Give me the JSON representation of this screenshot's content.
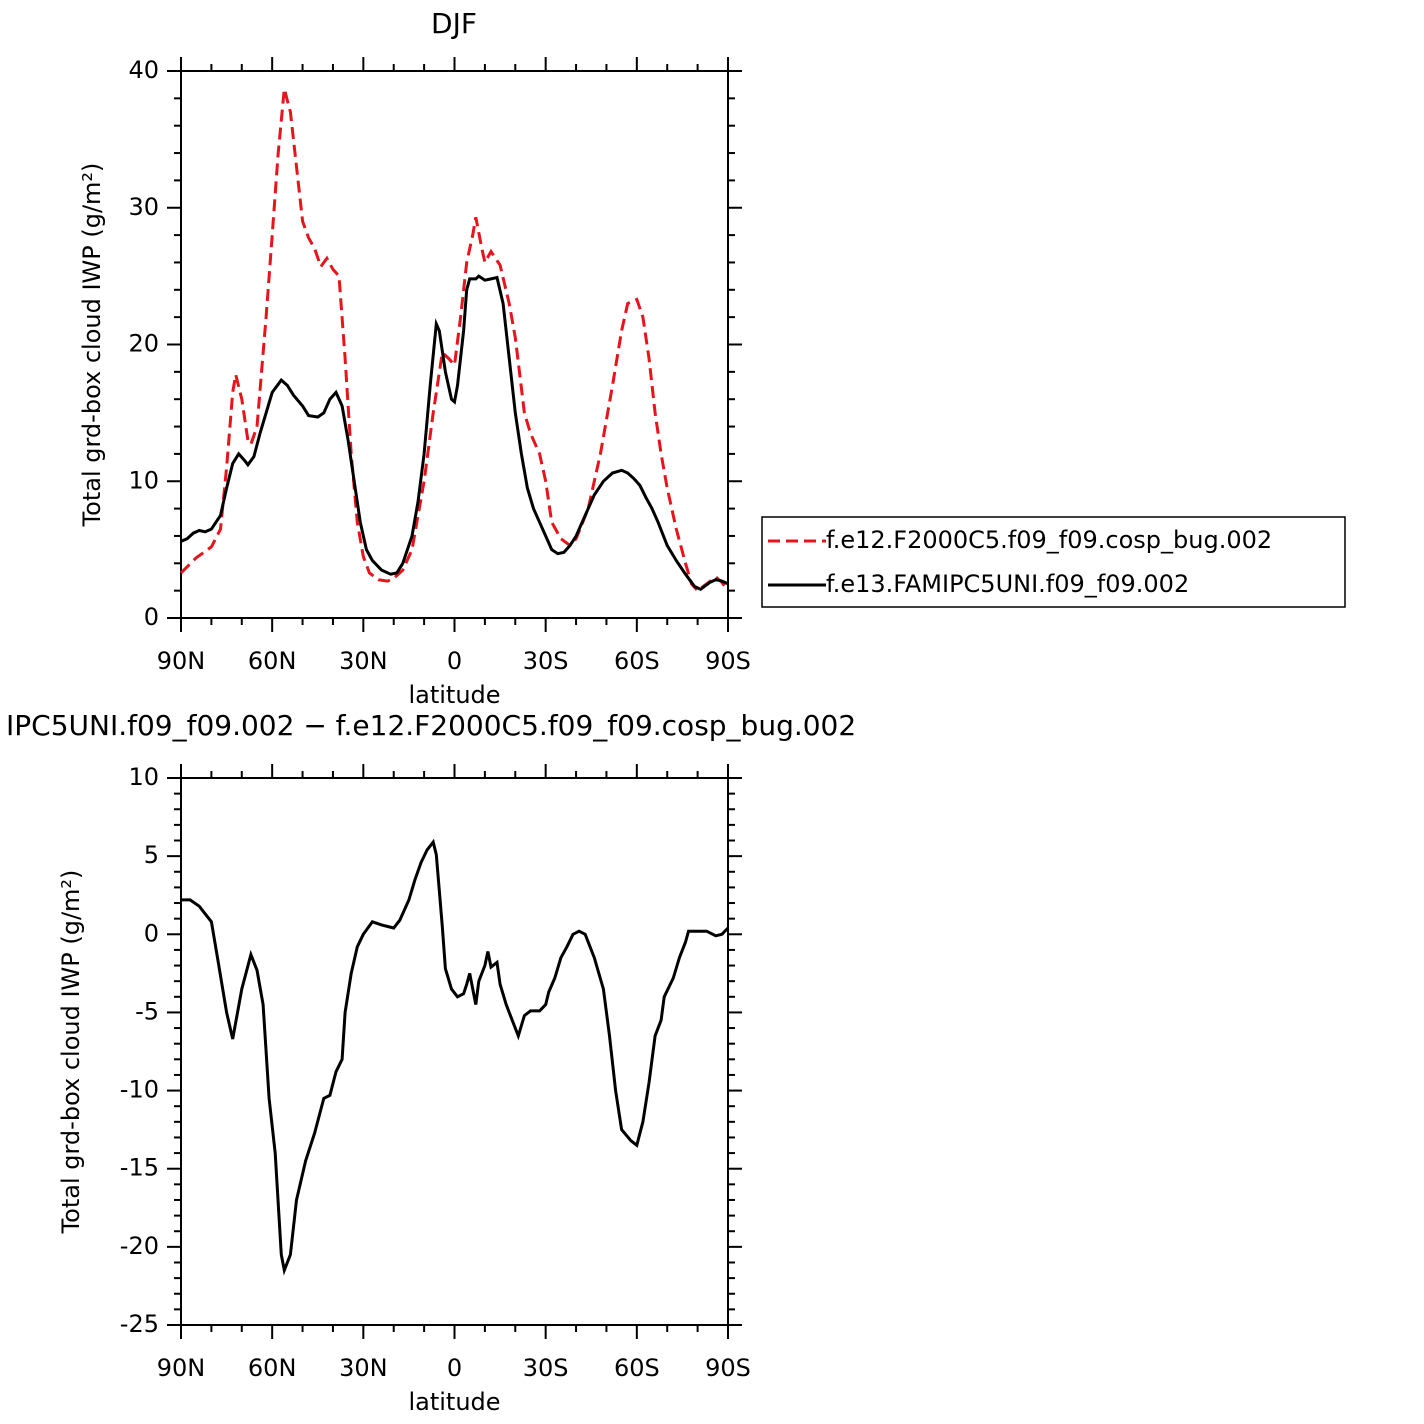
{
  "chart_data": [
    {
      "type": "line",
      "title": "DJF",
      "xlabel": "latitude",
      "ylabel": "Total grd-box cloud IWP (g/m²)",
      "xlim": [
        90,
        -90
      ],
      "xticks": [
        {
          "value": 90,
          "label": "90N"
        },
        {
          "value": 60,
          "label": "60N"
        },
        {
          "value": 30,
          "label": "30N"
        },
        0,
        {
          "value": -30,
          "label": "30S"
        },
        {
          "value": -60,
          "label": "60S"
        },
        {
          "value": -90,
          "label": "90S"
        }
      ],
      "ylim": [
        0,
        40
      ],
      "yticks": [
        0,
        10,
        20,
        30,
        40
      ],
      "legend": "right",
      "series": [
        {
          "name": "f.e12.F2000C5.f09_f09.cosp_bug.002",
          "color": "#e8141c",
          "dashed": true,
          "x": [
            90,
            85,
            80,
            77,
            75,
            73,
            72,
            70,
            68,
            67,
            65,
            62,
            60,
            58,
            56,
            54,
            52,
            50,
            48,
            46,
            44,
            42,
            40,
            38,
            36,
            34,
            32,
            30,
            28,
            25,
            22,
            20,
            17,
            14,
            10,
            7,
            4,
            2,
            0,
            -2,
            -4,
            -6,
            -7,
            -9,
            -10,
            -12,
            -15,
            -18,
            -20,
            -23,
            -25,
            -28,
            -30,
            -32,
            -35,
            -38,
            -40,
            -44,
            -48,
            -52,
            -55,
            -57,
            -60,
            -62,
            -64,
            -66,
            -68,
            -70,
            -73,
            -76,
            -78,
            -80,
            -83,
            -86,
            -88,
            -90
          ],
          "values": [
            3.3,
            4.4,
            5.2,
            6.5,
            11,
            16.5,
            17.8,
            16,
            13,
            12.7,
            14,
            22,
            28,
            34,
            38.7,
            37,
            33,
            29,
            27.8,
            27,
            25.7,
            26.3,
            25.5,
            25,
            19,
            12,
            7,
            4.5,
            3.3,
            2.8,
            2.7,
            2.9,
            3.5,
            5,
            10,
            15,
            19.4,
            19,
            18.5,
            22,
            26,
            28,
            29.3,
            27,
            26,
            26.8,
            25.8,
            23,
            20.5,
            15,
            13.5,
            12,
            10,
            7,
            5.8,
            5.3,
            5.8,
            8,
            12,
            17,
            21,
            23,
            23.3,
            22,
            19,
            15,
            12,
            9.5,
            6.5,
            4,
            2.5,
            2,
            2.5,
            3,
            2.6,
            2
          ]
        },
        {
          "name": "f.e13.FAMIPC5UNI.f09_f09.002",
          "color": "#000000",
          "dashed": false,
          "x": [
            90,
            88,
            86,
            84,
            82,
            80,
            77,
            75,
            73,
            71,
            69,
            68,
            66,
            64,
            62,
            60,
            57,
            55,
            53,
            50,
            48,
            45,
            43,
            41,
            39,
            37,
            35,
            33,
            31,
            29,
            27,
            24,
            21,
            19,
            17,
            14,
            12,
            10,
            8,
            6,
            5,
            3,
            1,
            0,
            -1,
            -3,
            -4,
            -5,
            -7,
            -8,
            -10,
            -12,
            -14,
            -16,
            -18,
            -20,
            -22,
            -24,
            -26,
            -28,
            -30,
            -32,
            -34,
            -36,
            -38,
            -40,
            -43,
            -46,
            -49,
            -52,
            -55,
            -57,
            -59,
            -61,
            -63,
            -65,
            -67,
            -70,
            -73,
            -76,
            -79,
            -81,
            -84,
            -86,
            -88,
            -90
          ],
          "values": [
            5.6,
            5.8,
            6.2,
            6.4,
            6.3,
            6.5,
            7.5,
            9.5,
            11.3,
            12,
            11.5,
            11.2,
            11.8,
            13.5,
            15,
            16.5,
            17.4,
            17,
            16.3,
            15.5,
            14.8,
            14.7,
            15,
            16,
            16.5,
            15.5,
            13,
            10,
            7,
            5,
            4.2,
            3.5,
            3.2,
            3.3,
            4,
            6,
            8.5,
            12,
            17,
            21.5,
            21,
            18,
            16,
            15.8,
            17,
            21,
            24,
            24.8,
            24.8,
            25,
            24.7,
            24.8,
            24.9,
            23,
            19,
            15,
            12,
            9.5,
            8,
            7,
            6,
            5,
            4.7,
            4.8,
            5.3,
            6,
            7.5,
            9,
            10,
            10.6,
            10.8,
            10.6,
            10.2,
            9.7,
            8.8,
            8,
            7,
            5.3,
            4.2,
            3.2,
            2.3,
            2.1,
            2.6,
            2.8,
            2.7,
            2.5
          ]
        }
      ]
    },
    {
      "type": "line",
      "title": "IPC5UNI.f09_f09.002 − f.e12.F2000C5.f09_f09.cosp_bug.002",
      "xlabel": "latitude",
      "ylabel": "Total grd-box cloud IWP (g/m²)",
      "xlim": [
        90,
        -90
      ],
      "xticks": [
        {
          "value": 90,
          "label": "90N"
        },
        {
          "value": 60,
          "label": "60N"
        },
        {
          "value": 30,
          "label": "30N"
        },
        0,
        {
          "value": -30,
          "label": "30S"
        },
        {
          "value": -60,
          "label": "60S"
        },
        {
          "value": -90,
          "label": "90S"
        }
      ],
      "ylim": [
        -25,
        10
      ],
      "yticks": [
        -25,
        -20,
        -15,
        -10,
        -5,
        0,
        5,
        10
      ],
      "series": [
        {
          "color": "#000000",
          "dashed": false,
          "x": [
            90,
            87,
            84,
            80,
            78,
            75,
            73,
            70,
            67,
            65,
            63,
            61,
            59,
            57,
            56,
            54,
            52,
            49,
            46,
            43,
            41,
            39,
            37,
            36,
            34,
            32,
            30,
            27,
            24,
            20,
            18,
            15,
            13,
            11,
            9,
            7,
            6,
            4,
            3,
            1,
            -1,
            -3,
            -4,
            -5,
            -7,
            -8,
            -10,
            -11,
            -12,
            -14,
            -15,
            -17,
            -19,
            -21,
            -23,
            -25,
            -28,
            -30,
            -31,
            -33,
            -35,
            -37,
            -39,
            -41,
            -43,
            -44,
            -46,
            -49,
            -51,
            -53,
            -55,
            -58,
            -60,
            -62,
            -64,
            -66,
            -68,
            -69,
            -72,
            -74,
            -76,
            -77,
            -81,
            -83,
            -86,
            -88,
            -90
          ],
          "values": [
            2.2,
            2.2,
            1.8,
            0.8,
            -1.5,
            -5,
            -6.7,
            -3.5,
            -1.3,
            -2.3,
            -4.5,
            -10.5,
            -14,
            -20.5,
            -21.5,
            -20.5,
            -17,
            -14.5,
            -12.7,
            -10.5,
            -10.3,
            -8.8,
            -8,
            -5,
            -2.5,
            -0.8,
            0,
            0.8,
            0.6,
            0.4,
            0.9,
            2.2,
            3.5,
            4.6,
            5.4,
            5.9,
            5.1,
            0.5,
            -2.2,
            -3.5,
            -4,
            -3.8,
            -3.2,
            -2.5,
            -4.5,
            -3,
            -2,
            -1.1,
            -2.1,
            -1.8,
            -3.2,
            -4.5,
            -5.5,
            -6.5,
            -5.2,
            -4.9,
            -4.9,
            -4.5,
            -3.7,
            -2.8,
            -1.5,
            -0.8,
            0,
            0.2,
            0,
            -0.5,
            -1.5,
            -3.5,
            -6.5,
            -10,
            -12.5,
            -13.2,
            -13.5,
            -12,
            -9.5,
            -6.5,
            -5.5,
            -4,
            -2.8,
            -1.5,
            -0.5,
            0.2,
            0.2,
            0.2,
            -0.1,
            0,
            0.4
          ]
        }
      ]
    }
  ]
}
